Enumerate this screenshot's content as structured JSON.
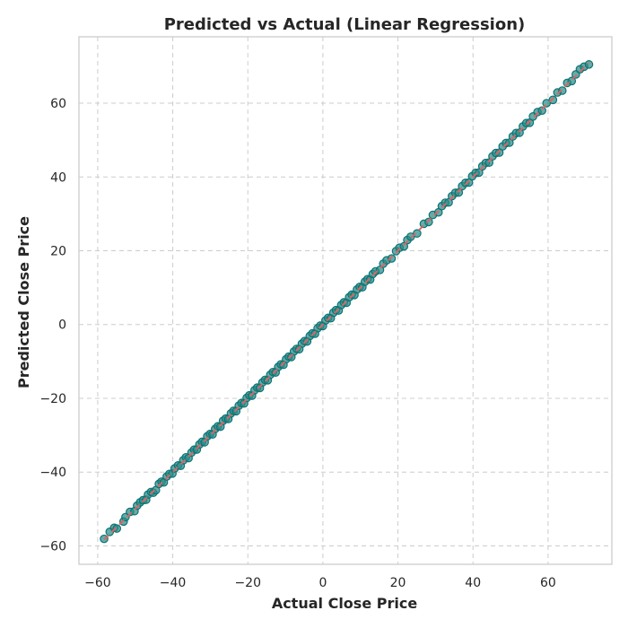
{
  "chart_data": {
    "type": "scatter",
    "title": "Predicted vs Actual (Linear Regression)",
    "xlabel": "Actual Close Price",
    "ylabel": "Predicted Close Price",
    "xlim": [
      -65,
      77
    ],
    "ylim": [
      -65,
      78
    ],
    "xticks": [
      -60,
      -40,
      -20,
      0,
      20,
      40,
      60
    ],
    "yticks": [
      -60,
      -40,
      -20,
      0,
      20,
      40,
      60
    ],
    "grid": true,
    "series": [
      {
        "points": [
          [
            -58.3,
            -58.1
          ],
          [
            -56.8,
            -56.2
          ],
          [
            -55.6,
            -55.1
          ],
          [
            -54.9,
            -55.3
          ],
          [
            -53.1,
            -53.4
          ],
          [
            -52.6,
            -52.2
          ],
          [
            -51.4,
            -50.8
          ],
          [
            -50.2,
            -50.6
          ],
          [
            -49.5,
            -49.1
          ],
          [
            -48.7,
            -48.2
          ],
          [
            -47.9,
            -47.6
          ],
          [
            -47.1,
            -47.5
          ],
          [
            -46.6,
            -46.1
          ],
          [
            -45.8,
            -45.4
          ],
          [
            -45.2,
            -45.6
          ],
          [
            -44.5,
            -44.9
          ],
          [
            -43.7,
            -43.2
          ],
          [
            -43.0,
            -42.6
          ],
          [
            -42.4,
            -42.8
          ],
          [
            -41.6,
            -41.2
          ],
          [
            -40.9,
            -40.5
          ],
          [
            -40.1,
            -40.4
          ],
          [
            -39.5,
            -39.0
          ],
          [
            -38.6,
            -38.2
          ],
          [
            -37.9,
            -38.3
          ],
          [
            -37.2,
            -36.8
          ],
          [
            -36.5,
            -36.0
          ],
          [
            -35.8,
            -36.2
          ],
          [
            -35.0,
            -34.7
          ],
          [
            -34.3,
            -33.9
          ],
          [
            -33.6,
            -33.9
          ],
          [
            -32.9,
            -32.5
          ],
          [
            -32.2,
            -31.8
          ],
          [
            -31.5,
            -31.9
          ],
          [
            -30.8,
            -30.3
          ],
          [
            -30.1,
            -29.7
          ],
          [
            -29.4,
            -29.8
          ],
          [
            -28.7,
            -28.3
          ],
          [
            -28.0,
            -27.6
          ],
          [
            -27.3,
            -27.7
          ],
          [
            -26.6,
            -26.1
          ],
          [
            -25.9,
            -25.5
          ],
          [
            -25.2,
            -25.6
          ],
          [
            -24.5,
            -24.1
          ],
          [
            -23.8,
            -23.4
          ],
          [
            -23.1,
            -23.5
          ],
          [
            -22.4,
            -22.0
          ],
          [
            -21.7,
            -21.3
          ],
          [
            -21.0,
            -21.4
          ],
          [
            -20.3,
            -19.9
          ],
          [
            -19.6,
            -19.2
          ],
          [
            -18.9,
            -19.3
          ],
          [
            -18.2,
            -17.8
          ],
          [
            -17.5,
            -17.1
          ],
          [
            -16.8,
            -17.2
          ],
          [
            -16.1,
            -15.7
          ],
          [
            -15.4,
            -15.0
          ],
          [
            -14.7,
            -15.1
          ],
          [
            -14.0,
            -13.6
          ],
          [
            -13.3,
            -12.9
          ],
          [
            -12.6,
            -13.0
          ],
          [
            -11.9,
            -11.5
          ],
          [
            -11.2,
            -10.8
          ],
          [
            -10.5,
            -10.9
          ],
          [
            -9.8,
            -9.4
          ],
          [
            -9.1,
            -8.7
          ],
          [
            -8.4,
            -8.8
          ],
          [
            -7.7,
            -7.3
          ],
          [
            -7.0,
            -6.6
          ],
          [
            -6.3,
            -6.7
          ],
          [
            -5.6,
            -5.2
          ],
          [
            -4.9,
            -4.5
          ],
          [
            -4.2,
            -4.6
          ],
          [
            -3.5,
            -3.1
          ],
          [
            -2.8,
            -2.4
          ],
          [
            -2.1,
            -2.5
          ],
          [
            -1.4,
            -1.0
          ],
          [
            -0.7,
            -0.3
          ],
          [
            0.0,
            -0.4
          ],
          [
            0.7,
            1.1
          ],
          [
            1.4,
            1.8
          ],
          [
            2.1,
            1.7
          ],
          [
            2.8,
            3.2
          ],
          [
            3.5,
            3.9
          ],
          [
            4.2,
            3.8
          ],
          [
            4.9,
            5.3
          ],
          [
            5.6,
            6.0
          ],
          [
            6.3,
            5.9
          ],
          [
            7.0,
            7.4
          ],
          [
            7.7,
            8.1
          ],
          [
            8.4,
            8.0
          ],
          [
            9.1,
            9.5
          ],
          [
            9.8,
            10.2
          ],
          [
            10.5,
            10.1
          ],
          [
            11.2,
            11.6
          ],
          [
            11.9,
            12.3
          ],
          [
            12.6,
            12.2
          ],
          [
            13.3,
            13.7
          ],
          [
            14.0,
            14.4
          ],
          [
            15.2,
            14.8
          ],
          [
            16.1,
            16.5
          ],
          [
            17.0,
            17.4
          ],
          [
            18.3,
            17.9
          ],
          [
            19.5,
            19.9
          ],
          [
            20.4,
            20.8
          ],
          [
            21.6,
            21.2
          ],
          [
            22.5,
            22.9
          ],
          [
            23.4,
            23.8
          ],
          [
            25.1,
            24.7
          ],
          [
            26.9,
            27.3
          ],
          [
            28.2,
            27.8
          ],
          [
            29.3,
            29.7
          ],
          [
            30.8,
            30.4
          ],
          [
            31.7,
            32.1
          ],
          [
            32.6,
            33.0
          ],
          [
            33.5,
            33.1
          ],
          [
            34.4,
            34.8
          ],
          [
            35.3,
            35.7
          ],
          [
            36.2,
            35.8
          ],
          [
            37.1,
            37.5
          ],
          [
            38.0,
            38.4
          ],
          [
            38.9,
            38.5
          ],
          [
            39.8,
            40.2
          ],
          [
            40.7,
            41.1
          ],
          [
            41.6,
            41.2
          ],
          [
            42.5,
            42.9
          ],
          [
            43.4,
            43.8
          ],
          [
            44.3,
            43.9
          ],
          [
            45.2,
            45.6
          ],
          [
            46.1,
            46.5
          ],
          [
            47.0,
            46.6
          ],
          [
            47.9,
            48.3
          ],
          [
            48.8,
            49.2
          ],
          [
            49.7,
            49.3
          ],
          [
            50.6,
            51.0
          ],
          [
            51.5,
            51.9
          ],
          [
            52.4,
            52.0
          ],
          [
            53.3,
            53.7
          ],
          [
            54.2,
            54.6
          ],
          [
            55.1,
            54.7
          ],
          [
            56.0,
            56.4
          ],
          [
            57.2,
            57.6
          ],
          [
            58.4,
            58.0
          ],
          [
            59.6,
            60.0
          ],
          [
            61.3,
            60.9
          ],
          [
            62.5,
            62.9
          ],
          [
            63.8,
            63.4
          ],
          [
            65.1,
            65.5
          ],
          [
            66.3,
            66.0
          ],
          [
            67.4,
            67.8
          ],
          [
            68.5,
            69.2
          ],
          [
            69.6,
            69.9
          ],
          [
            70.9,
            70.5
          ]
        ]
      }
    ],
    "reference_line": {
      "x": [
        -58.3,
        70.9
      ],
      "y": [
        -58.3,
        70.9
      ]
    },
    "colors": {
      "points_fill": "#2a8c88",
      "points_stroke": "#0e7373",
      "reference_line": "#d96666",
      "grid": "#cccccc",
      "frame": "#cccccc",
      "text": "#262626"
    }
  }
}
